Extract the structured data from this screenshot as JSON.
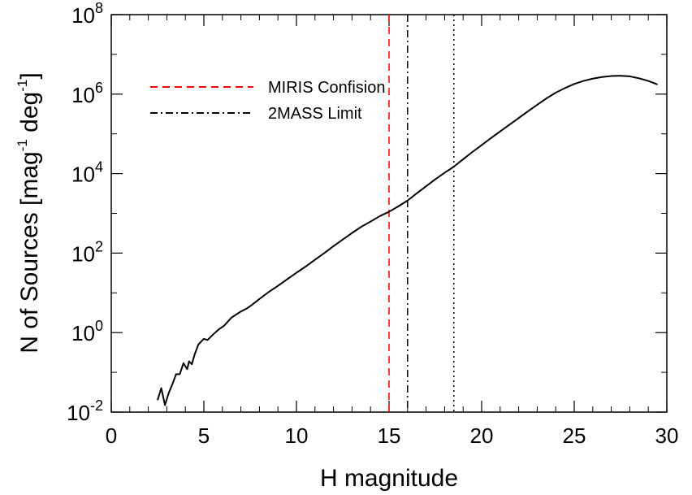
{
  "chart_data": {
    "type": "line",
    "xlabel": "H magnitude",
    "ylabel": {
      "prefix": "N of Sources [mag",
      "sup1": "-1",
      "mid": " deg",
      "sup2": "-1",
      "suffix": "]"
    },
    "xlim": [
      0,
      30
    ],
    "ylim": [
      0.01,
      100000000
    ],
    "yscale": "log",
    "grid": false,
    "legend_position": "top-left",
    "x_ticks": [
      {
        "value": 0,
        "label": "0"
      },
      {
        "value": 5,
        "label": "5"
      },
      {
        "value": 10,
        "label": "10"
      },
      {
        "value": 15,
        "label": "15"
      },
      {
        "value": 20,
        "label": "20"
      },
      {
        "value": 25,
        "label": "25"
      },
      {
        "value": 30,
        "label": "30"
      }
    ],
    "y_ticks": [
      {
        "value": 0.01,
        "base": "10",
        "exp": "-2"
      },
      {
        "value": 1,
        "base": "10",
        "exp": "0"
      },
      {
        "value": 100,
        "base": "10",
        "exp": "2"
      },
      {
        "value": 10000,
        "base": "10",
        "exp": "4"
      },
      {
        "value": 1000000,
        "base": "10",
        "exp": "6"
      },
      {
        "value": 100000000,
        "base": "10",
        "exp": "8"
      }
    ],
    "series": [
      {
        "color": "#000000",
        "x": [
          2.5,
          2.7,
          2.9,
          3.1,
          3.3,
          3.5,
          3.7,
          3.9,
          4.1,
          4.2,
          4.35,
          4.5,
          4.7,
          5.0,
          5.2,
          5.5,
          5.8,
          6.1,
          6.5,
          7.0,
          7.3,
          7.6,
          8.0,
          8.5,
          9.0,
          9.5,
          10.0,
          10.5,
          11.0,
          11.5,
          12.0,
          12.5,
          13.0,
          13.5,
          14.0,
          14.5,
          15.0,
          15.5,
          16.0,
          16.5,
          17.0,
          17.5,
          18.0,
          18.5,
          19.0,
          19.5,
          20.0,
          20.5,
          21.0,
          21.5,
          22.0,
          22.5,
          23.0,
          23.5,
          24.0,
          24.5,
          25.0,
          25.5,
          26.0,
          26.5,
          27.0,
          27.5,
          28.0,
          28.5,
          29.0,
          29.5
        ],
        "y": [
          0.02,
          0.04,
          0.015,
          0.03,
          0.05,
          0.09,
          0.09,
          0.17,
          0.12,
          0.19,
          0.16,
          0.28,
          0.5,
          0.7,
          0.65,
          0.9,
          1.2,
          1.5,
          2.4,
          3.4,
          4.0,
          5.0,
          7.0,
          10.5,
          15.0,
          22.0,
          32.0,
          46.0,
          68.0,
          100.0,
          150.0,
          220.0,
          320.0,
          460.0,
          620.0,
          850.0,
          1100.0,
          1500.0,
          2100.0,
          3200.0,
          4800.0,
          7200.0,
          10500.0,
          15000.0,
          23000.0,
          35000.0,
          52000.0,
          78000.0,
          115000.0,
          170000.0,
          250000.0,
          370000.0,
          540000.0,
          780000.0,
          1090000.0,
          1420000.0,
          1800000.0,
          2150000.0,
          2450000.0,
          2700000.0,
          2850000.0,
          2900000.0,
          2800000.0,
          2500000.0,
          2150000.0,
          1750000.0
        ],
        "style": "solid"
      }
    ],
    "reference_lines": [
      {
        "name": "MIRIS Confision",
        "x": 15.0,
        "color": "#ff0000",
        "style": "dashed"
      },
      {
        "name": "2MASS Limit",
        "x": 16.0,
        "color": "#000000",
        "style": "dashdot"
      },
      {
        "x": 18.5,
        "color": "#000000",
        "style": "dotted"
      }
    ]
  }
}
